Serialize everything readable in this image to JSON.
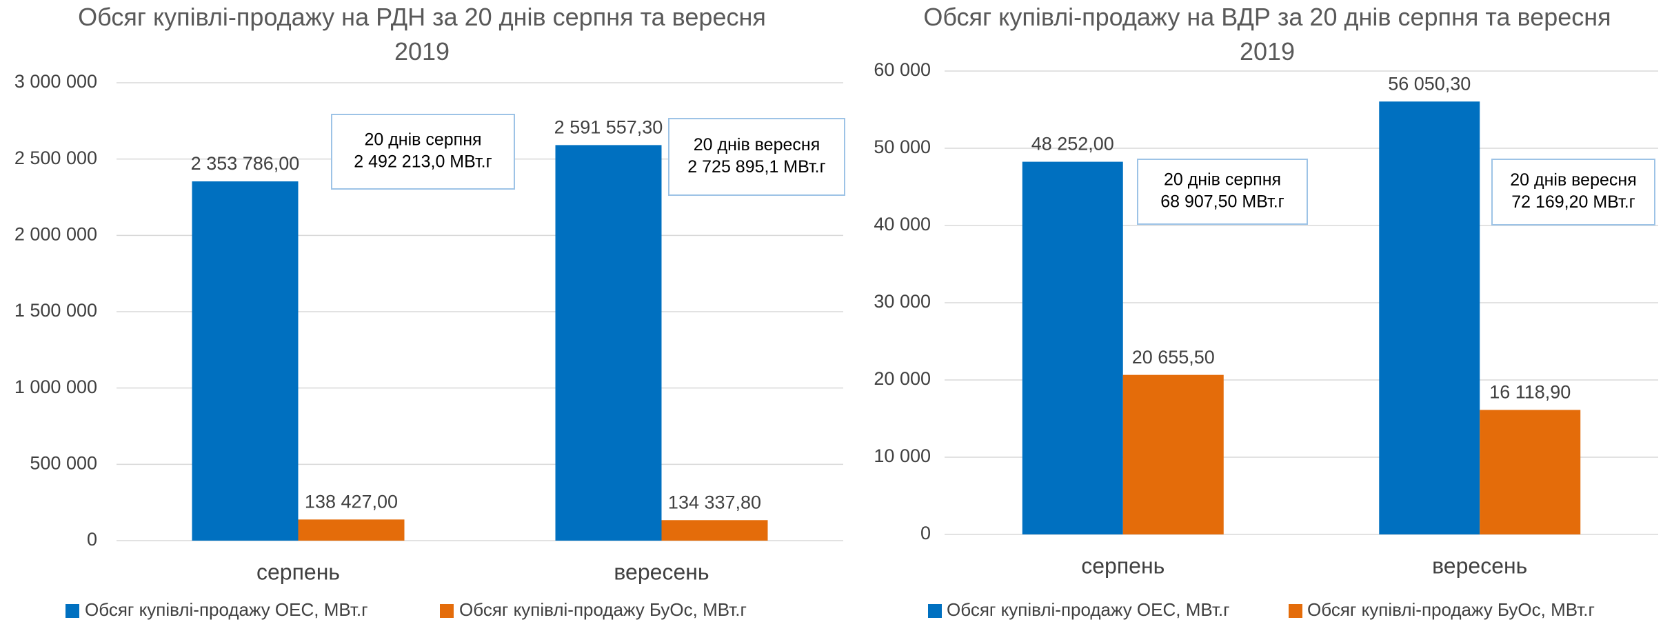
{
  "chart_data": [
    {
      "type": "bar",
      "title": "Обсяг купівлі-продажу на РДН за 20 днів серпня та вересня 2019",
      "categories": [
        "серпень",
        "вересень"
      ],
      "series": [
        {
          "name": "Обсяг купівлі-продажу ОЕС, МВт.г",
          "color": "#0070c0",
          "values": [
            2353786.0,
            2591557.3
          ],
          "value_labels": [
            "2 353 786,00",
            "2 591 557,30"
          ]
        },
        {
          "name": "Обсяг купівлі-продажу БуОс, МВт.г",
          "color": "#e46c0a",
          "values": [
            138427.0,
            134337.8
          ],
          "value_labels": [
            "138 427,00",
            "134 337,80"
          ]
        }
      ],
      "ylim": [
        0,
        3000000
      ],
      "yticks": [
        0,
        {
          "value": 500000,
          "label": "500 000"
        },
        {
          "value": 1000000,
          "label": "1 000 000"
        },
        {
          "value": 1500000,
          "label": "1 500 000"
        },
        {
          "value": 2000000,
          "label": "2 000 000"
        },
        {
          "value": 2500000,
          "label": "2 500 000"
        },
        {
          "value": 3000000,
          "label": "3 000 000"
        }
      ],
      "grid": true,
      "legend": "bottom",
      "annotations": [
        {
          "lines": [
            "20 днів серпня",
            "2 492 213,0 МВт.г"
          ]
        },
        {
          "lines": [
            "20 днів вересня",
            "2 725 895,1 МВт.г"
          ]
        }
      ]
    },
    {
      "type": "bar",
      "title": "Обсяг купівлі-продажу на ВДР за 20 днів серпня та вересня 2019",
      "categories": [
        "серпень",
        "вересень"
      ],
      "series": [
        {
          "name": "Обсяг купівлі-продажу ОЕС, МВт.г",
          "color": "#0070c0",
          "values": [
            48252.0,
            56050.3
          ],
          "value_labels": [
            "48 252,00",
            "56 050,30"
          ]
        },
        {
          "name": "Обсяг купівлі-продажу БуОс, МВт.г",
          "color": "#e46c0a",
          "values": [
            20655.5,
            16118.9
          ],
          "value_labels": [
            "20 655,50",
            "16 118,90"
          ]
        }
      ],
      "ylim": [
        0,
        60000
      ],
      "yticks": [
        0,
        {
          "value": 10000,
          "label": "10 000"
        },
        {
          "value": 20000,
          "label": "20 000"
        },
        {
          "value": 30000,
          "label": "30 000"
        },
        {
          "value": 40000,
          "label": "40 000"
        },
        {
          "value": 50000,
          "label": "50 000"
        },
        {
          "value": 60000,
          "label": "60 000"
        }
      ],
      "grid": true,
      "legend": "bottom",
      "annotations": [
        {
          "lines": [
            "20 днів серпня",
            "68 907,50 МВт.г"
          ]
        },
        {
          "lines": [
            "20 днів вересня",
            "72 169,20 МВт.г"
          ]
        }
      ]
    }
  ]
}
